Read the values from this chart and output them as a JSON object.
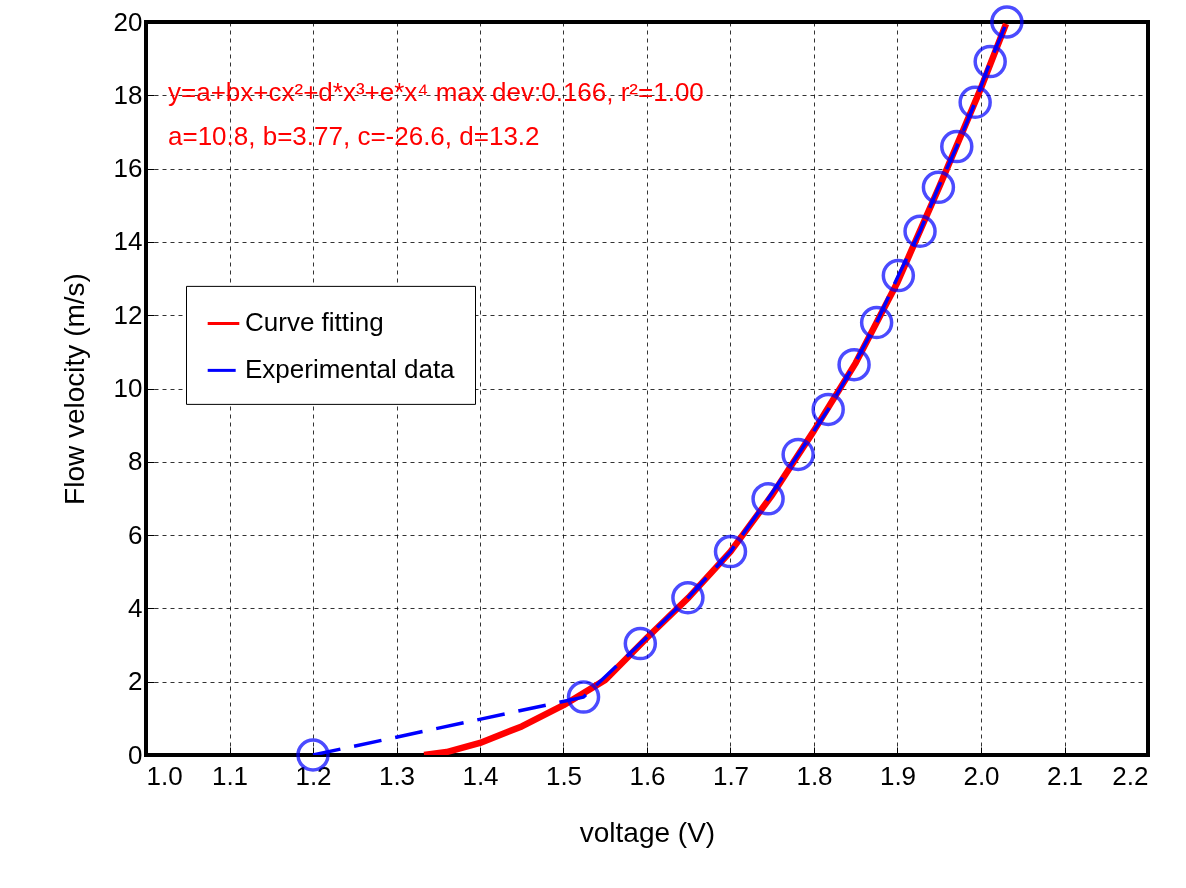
{
  "chart_data": {
    "type": "line",
    "xlabel": "voltage (V)",
    "ylabel": "Flow velocity (m/s)",
    "xlim": [
      1.0,
      2.2
    ],
    "xticks": [
      {
        "value": 1,
        "label": "1.0"
      },
      1.1,
      1.2,
      1.3,
      1.4,
      1.5,
      1.6,
      1.7,
      1.8,
      1.9,
      {
        "value": 2,
        "label": "2.0"
      },
      2.1,
      2.2
    ],
    "ylim": [
      0,
      20
    ],
    "yticks": [
      0,
      2,
      4,
      6,
      8,
      10,
      12,
      14,
      16,
      18,
      20
    ],
    "grid": true,
    "legend": "left",
    "annotations": [
      "y=a+bx+cx²+d*x³+e*x⁴ max dev:0.166, r²=1.00",
      "a=10.8, b=3.77, c=-26.6, d=13.2"
    ],
    "series": [
      {
        "name": "Curve fitting",
        "color": "#ff0000",
        "line_style": "solid",
        "marker": "none",
        "x": [
          1.333,
          1.36,
          1.4,
          1.45,
          1.5,
          1.55,
          1.6,
          1.65,
          1.7,
          1.75,
          1.8,
          1.85,
          1.9,
          1.95,
          2.0,
          2.03
        ],
        "values": [
          0,
          0.08,
          0.33,
          0.78,
          1.36,
          2.05,
          3.2,
          4.3,
          5.55,
          7.1,
          8.85,
          10.7,
          12.9,
          15.5,
          18.2,
          19.95
        ]
      },
      {
        "name": "Experimental data",
        "color": "#0000ff",
        "line_style": "dashed",
        "marker": "circle",
        "x": [
          1.2,
          1.524,
          1.592,
          1.649,
          1.7,
          1.745,
          1.781,
          1.817,
          1.848,
          1.875,
          1.901,
          1.927,
          1.949,
          1.971,
          1.993,
          2.011,
          2.031
        ],
        "values": [
          0,
          1.58,
          3.04,
          4.29,
          5.55,
          6.99,
          8.2,
          9.43,
          10.65,
          11.8,
          13.08,
          14.29,
          15.49,
          16.6,
          17.81,
          18.92,
          20.0
        ]
      }
    ]
  }
}
